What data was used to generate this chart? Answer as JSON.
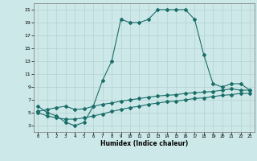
{
  "xlabel": "Humidex (Indice chaleur)",
  "background_color": "#cde8e8",
  "grid_color": "#b8d4d4",
  "line_color": "#1a6e6a",
  "xlim": [
    -0.5,
    23.5
  ],
  "ylim": [
    2,
    22
  ],
  "xticks": [
    0,
    1,
    2,
    3,
    4,
    5,
    6,
    7,
    8,
    9,
    10,
    11,
    12,
    13,
    14,
    15,
    16,
    17,
    18,
    19,
    20,
    21,
    22,
    23
  ],
  "yticks": [
    3,
    5,
    7,
    9,
    11,
    13,
    15,
    17,
    19,
    21
  ],
  "curve1_x": [
    0,
    1,
    2,
    3,
    4,
    5,
    6,
    7,
    8,
    9,
    10,
    11,
    12,
    13,
    14,
    15,
    16,
    17,
    18,
    19,
    20,
    21,
    22,
    23
  ],
  "curve1_y": [
    6,
    5,
    4.5,
    3.5,
    3,
    3.5,
    6,
    10,
    13,
    19.5,
    19,
    19,
    19.5,
    21,
    21,
    21,
    21,
    19.5,
    14,
    9.5,
    9,
    9.5,
    9.5,
    8.5
  ],
  "curve2_x": [
    0,
    1,
    2,
    3,
    4,
    5,
    6,
    7,
    8,
    9,
    10,
    11,
    12,
    13,
    14,
    15,
    16,
    17,
    18,
    19,
    20,
    21,
    22,
    23
  ],
  "curve2_y": [
    5.2,
    5.5,
    5.8,
    6.0,
    5.5,
    5.6,
    6.0,
    6.3,
    6.5,
    6.8,
    7.0,
    7.2,
    7.4,
    7.6,
    7.7,
    7.8,
    8.0,
    8.1,
    8.2,
    8.3,
    8.5,
    8.7,
    8.5,
    8.5
  ],
  "curve3_x": [
    0,
    1,
    2,
    3,
    4,
    5,
    6,
    7,
    8,
    9,
    10,
    11,
    12,
    13,
    14,
    15,
    16,
    17,
    18,
    19,
    20,
    21,
    22,
    23
  ],
  "curve3_y": [
    5.0,
    4.5,
    4.2,
    4.0,
    4.0,
    4.2,
    4.5,
    4.8,
    5.2,
    5.5,
    5.8,
    6.0,
    6.3,
    6.5,
    6.7,
    6.8,
    7.0,
    7.2,
    7.3,
    7.5,
    7.7,
    7.8,
    8.0,
    8.0
  ],
  "marker": "D",
  "marker_size": 2.0,
  "linewidth": 0.8
}
